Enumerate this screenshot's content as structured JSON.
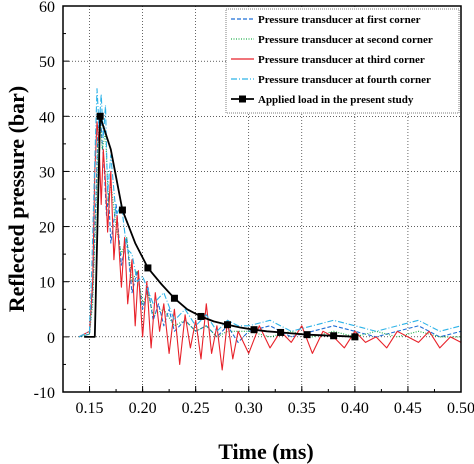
{
  "chart_data": {
    "type": "line",
    "title": "",
    "xlabel": "Time (ms)",
    "ylabel": "Reflected pressure (bar)",
    "xlim": [
      0.125,
      0.5
    ],
    "ylim": [
      -10,
      60
    ],
    "xticks": [
      0.15,
      0.2,
      0.25,
      0.3,
      0.35,
      0.4,
      0.45,
      0.5
    ],
    "xtick_labels": [
      "0.15",
      "0.20",
      "0.25",
      "0.30",
      "0.35",
      "0.40",
      "0.45",
      "0.50"
    ],
    "yticks": [
      -10,
      0,
      10,
      20,
      30,
      40,
      50,
      60
    ],
    "ytick_labels": [
      "-10",
      "0",
      "10",
      "20",
      "30",
      "40",
      "50",
      "60"
    ],
    "grid": true,
    "legend_position": "top-right",
    "series": [
      {
        "name": "Pressure transducer at first corner",
        "color": "#1f6fd6",
        "style": "dashed",
        "x": [
          0.14,
          0.15,
          0.153,
          0.156,
          0.158,
          0.16,
          0.162,
          0.164,
          0.166,
          0.168,
          0.17,
          0.175,
          0.18,
          0.185,
          0.19,
          0.195,
          0.2,
          0.205,
          0.21,
          0.215,
          0.22,
          0.225,
          0.23,
          0.24,
          0.25,
          0.26,
          0.27,
          0.28,
          0.29,
          0.3,
          0.32,
          0.34,
          0.36,
          0.38,
          0.4,
          0.42,
          0.44,
          0.46,
          0.48,
          0.5
        ],
        "y": [
          0,
          0.5,
          8,
          25,
          38,
          41,
          35,
          30,
          22,
          26,
          17,
          24,
          13,
          18,
          8,
          12,
          5,
          9,
          3,
          6,
          2,
          5,
          1,
          3,
          1,
          2,
          0,
          2,
          -1,
          1,
          2,
          0,
          1,
          2,
          1,
          0,
          1,
          2,
          0,
          1
        ]
      },
      {
        "name": "Pressure transducer at second corner",
        "color": "#22b14c",
        "style": "dotted",
        "x": [
          0.14,
          0.15,
          0.153,
          0.156,
          0.158,
          0.16,
          0.162,
          0.165,
          0.168,
          0.17,
          0.175,
          0.18,
          0.185,
          0.19,
          0.195,
          0.2,
          0.205,
          0.21,
          0.22,
          0.23,
          0.24,
          0.25,
          0.26,
          0.27,
          0.28,
          0.3,
          0.32,
          0.34,
          0.36,
          0.38,
          0.4,
          0.42,
          0.44,
          0.46,
          0.48,
          0.5
        ],
        "y": [
          0,
          0.5,
          6,
          22,
          36,
          40,
          34,
          37,
          24,
          28,
          20,
          15,
          18,
          10,
          12,
          6,
          8,
          4,
          5,
          2,
          3,
          1,
          2,
          0,
          1,
          1,
          0,
          1,
          0,
          1,
          0,
          1,
          0,
          1,
          0,
          0
        ]
      },
      {
        "name": "Pressure transducer at third corner",
        "color": "#e8222a",
        "style": "solid",
        "x": [
          0.14,
          0.15,
          0.153,
          0.155,
          0.157,
          0.159,
          0.161,
          0.163,
          0.165,
          0.167,
          0.17,
          0.173,
          0.176,
          0.18,
          0.183,
          0.186,
          0.19,
          0.193,
          0.196,
          0.2,
          0.204,
          0.208,
          0.212,
          0.216,
          0.22,
          0.225,
          0.23,
          0.235,
          0.24,
          0.245,
          0.25,
          0.255,
          0.26,
          0.265,
          0.27,
          0.275,
          0.28,
          0.285,
          0.29,
          0.3,
          0.31,
          0.32,
          0.33,
          0.34,
          0.35,
          0.36,
          0.37,
          0.38,
          0.39,
          0.4,
          0.41,
          0.42,
          0.43,
          0.44,
          0.45,
          0.46,
          0.47,
          0.48,
          0.49,
          0.5
        ],
        "y": [
          0,
          1,
          10,
          30,
          39,
          35,
          24,
          34,
          28,
          19,
          30,
          14,
          22,
          9,
          18,
          6,
          14,
          2,
          12,
          0,
          10,
          -2,
          8,
          1,
          6,
          -3,
          5,
          -5,
          4,
          -2,
          3,
          -4,
          6,
          -3,
          2,
          -6,
          3,
          -4,
          1,
          -3,
          2,
          -2,
          1,
          -1,
          2,
          -3,
          1,
          0,
          -2,
          1,
          -1,
          0,
          -2,
          1,
          0,
          -1,
          1,
          -2,
          0,
          -1
        ]
      },
      {
        "name": "Pressure transducer at fourth corner",
        "color": "#2eb3e8",
        "style": "dashdot",
        "x": [
          0.14,
          0.15,
          0.152,
          0.155,
          0.157,
          0.159,
          0.161,
          0.163,
          0.165,
          0.167,
          0.17,
          0.175,
          0.18,
          0.185,
          0.19,
          0.195,
          0.2,
          0.21,
          0.22,
          0.23,
          0.24,
          0.25,
          0.26,
          0.27,
          0.28,
          0.29,
          0.3,
          0.32,
          0.34,
          0.36,
          0.38,
          0.4,
          0.42,
          0.44,
          0.46,
          0.48,
          0.5
        ],
        "y": [
          0,
          1,
          12,
          32,
          45,
          38,
          44,
          36,
          42,
          26,
          33,
          22,
          24,
          16,
          15,
          10,
          11,
          6,
          8,
          3,
          5,
          2,
          4,
          1,
          3,
          2,
          2,
          3,
          1,
          2,
          3,
          2,
          1,
          2,
          3,
          1,
          2
        ]
      },
      {
        "name": "Applied load in the present study",
        "color": "#000000",
        "style": "solid",
        "marker": "square",
        "x": [
          0.145,
          0.155,
          0.155,
          0.16,
          0.17,
          0.181,
          0.193,
          0.205,
          0.218,
          0.23,
          0.242,
          0.255,
          0.267,
          0.28,
          0.292,
          0.305,
          0.317,
          0.33,
          0.342,
          0.355,
          0.367,
          0.38,
          0.392,
          0.4
        ],
        "y": [
          0,
          0,
          0,
          40,
          34,
          23,
          17,
          12.5,
          9.5,
          7,
          5,
          3.7,
          2.8,
          2.2,
          1.7,
          1.3,
          1,
          0.8,
          0.6,
          0.4,
          0.3,
          0.2,
          0.1,
          0
        ],
        "marker_x": [
          0.16,
          0.181,
          0.205,
          0.23,
          0.255,
          0.28,
          0.305,
          0.33,
          0.355,
          0.38,
          0.4
        ],
        "marker_y": [
          40,
          23,
          12.5,
          7,
          3.7,
          2.2,
          1.3,
          0.8,
          0.4,
          0.2,
          0
        ]
      }
    ]
  }
}
